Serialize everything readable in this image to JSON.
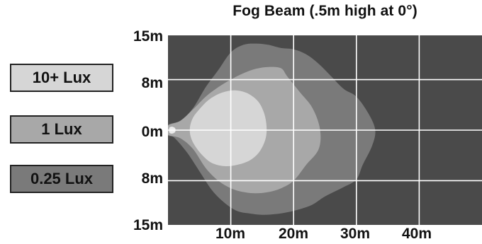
{
  "chart_data": {
    "type": "heatmap",
    "title": "Fog Beam (.5m high at 0°)",
    "x_ticks": [
      "10m",
      "20m",
      "30m",
      "40m"
    ],
    "y_ticks": [
      "15m",
      "8m",
      "0m",
      "8m",
      "15m"
    ],
    "legend": [
      {
        "label": "10+ Lux",
        "color": "#d6d6d6"
      },
      {
        "label": "1 Lux",
        "color": "#a8a8a8"
      },
      {
        "label": "0.25 Lux",
        "color": "#7a7a7a"
      }
    ],
    "background_color": "#4a4a4a",
    "grid": true,
    "xlim": [
      0,
      50
    ],
    "ylim": [
      -15,
      15
    ],
    "contours": [
      {
        "level": "0.25 Lux",
        "color": "#7a7a7a",
        "points": [
          [
            0,
            0.8
          ],
          [
            2,
            1.5
          ],
          [
            4,
            3.5
          ],
          [
            6,
            6.8
          ],
          [
            8,
            9.5
          ],
          [
            10,
            12.3
          ],
          [
            12,
            13.5
          ],
          [
            14,
            13.7
          ],
          [
            16,
            13.5
          ],
          [
            18,
            13
          ],
          [
            20,
            12.8
          ],
          [
            22,
            12
          ],
          [
            24,
            10.5
          ],
          [
            26,
            8.5
          ],
          [
            28,
            6.5
          ],
          [
            30,
            5.3
          ],
          [
            32,
            2.5
          ],
          [
            33,
            0
          ],
          [
            32.5,
            -2.5
          ],
          [
            31,
            -5.5
          ],
          [
            30,
            -7.8
          ],
          [
            28,
            -9
          ],
          [
            25,
            -10.5
          ],
          [
            23,
            -11.8
          ],
          [
            21,
            -12.5
          ],
          [
            19,
            -13
          ],
          [
            17,
            -13.3
          ],
          [
            15,
            -13.4
          ],
          [
            13,
            -13.2
          ],
          [
            11,
            -12.8
          ],
          [
            9,
            -11.5
          ],
          [
            7,
            -9.5
          ],
          [
            5,
            -6.5
          ],
          [
            3,
            -3.5
          ],
          [
            1,
            -1.2
          ],
          [
            0,
            -0.8
          ]
        ]
      },
      {
        "level": "1 Lux",
        "color": "#a8a8a8",
        "points": [
          [
            0,
            0.7
          ],
          [
            2,
            1.5
          ],
          [
            4,
            3.3
          ],
          [
            6,
            5.3
          ],
          [
            8,
            6.8
          ],
          [
            10,
            8
          ],
          [
            12,
            9
          ],
          [
            14,
            9.7
          ],
          [
            16,
            10
          ],
          [
            18,
            9.8
          ],
          [
            19,
            8.5
          ],
          [
            21,
            6
          ],
          [
            23,
            3.5
          ],
          [
            24.2,
            0.2
          ],
          [
            24,
            -3
          ],
          [
            22,
            -5.5
          ],
          [
            20,
            -8
          ],
          [
            18,
            -9.2
          ],
          [
            16,
            -9.8
          ],
          [
            14,
            -10
          ],
          [
            12,
            -9.8
          ],
          [
            10,
            -9.2
          ],
          [
            8,
            -8
          ],
          [
            6,
            -6
          ],
          [
            4,
            -3
          ],
          [
            2,
            -1.3
          ],
          [
            0,
            -0.7
          ]
        ]
      },
      {
        "level": "10+ Lux",
        "color": "#d6d6d6",
        "points": [
          [
            3.5,
            0.5
          ],
          [
            4,
            2
          ],
          [
            5,
            3.3
          ],
          [
            6.5,
            4.8
          ],
          [
            8.5,
            5.9
          ],
          [
            10.5,
            6.3
          ],
          [
            12.5,
            5.9
          ],
          [
            14.3,
            4.6
          ],
          [
            15.3,
            2.7
          ],
          [
            15.7,
            0.5
          ],
          [
            15.5,
            -1.5
          ],
          [
            14.5,
            -3.5
          ],
          [
            13,
            -4.8
          ],
          [
            11,
            -5.5
          ],
          [
            9,
            -5.7
          ],
          [
            7,
            -5.2
          ],
          [
            5.5,
            -4
          ],
          [
            4.3,
            -2.5
          ],
          [
            3.6,
            -1
          ]
        ]
      },
      {
        "level": "hotspot",
        "color": "#ececec",
        "points": [
          [
            0.2,
            0.35
          ],
          [
            0.6,
            0.55
          ],
          [
            1.1,
            0.35
          ],
          [
            1.2,
            0
          ],
          [
            1.1,
            -0.35
          ],
          [
            0.6,
            -0.55
          ],
          [
            0.2,
            -0.35
          ]
        ]
      }
    ]
  }
}
